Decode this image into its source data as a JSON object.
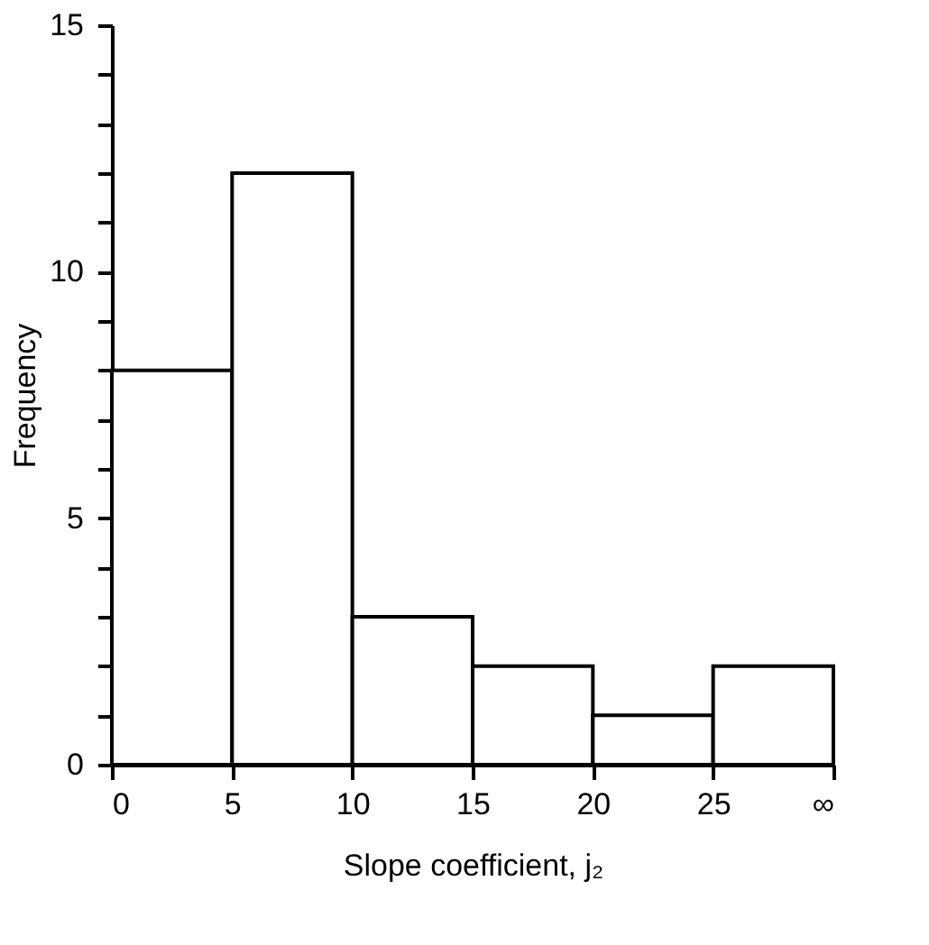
{
  "chart_data": {
    "type": "histogram",
    "bins": [
      0,
      5,
      10,
      15,
      20,
      25,
      30
    ],
    "values": [
      8,
      12,
      3,
      2,
      1,
      2
    ],
    "xlabel": "Slope coefficient, j₂",
    "ylabel": "Frequency",
    "xlim": [
      0,
      30
    ],
    "ylim": [
      0,
      15
    ],
    "xticks": [
      0,
      5,
      10,
      15,
      20,
      25,
      {
        "value": 30,
        "label": "∞"
      }
    ],
    "yticks": [
      0,
      {
        "value": 1,
        "label": null
      },
      {
        "value": 2,
        "label": null
      },
      {
        "value": 3,
        "label": null
      },
      {
        "value": 4,
        "label": null
      },
      5,
      {
        "value": 6,
        "label": null
      },
      {
        "value": 7,
        "label": null
      },
      {
        "value": 8,
        "label": null
      },
      {
        "value": 9,
        "label": null
      },
      10,
      {
        "value": 11,
        "label": null
      },
      {
        "value": 12,
        "label": null
      },
      {
        "value": 13,
        "label": null
      },
      {
        "value": 14,
        "label": null
      },
      15
    ],
    "color": "#000000",
    "grid": false
  }
}
